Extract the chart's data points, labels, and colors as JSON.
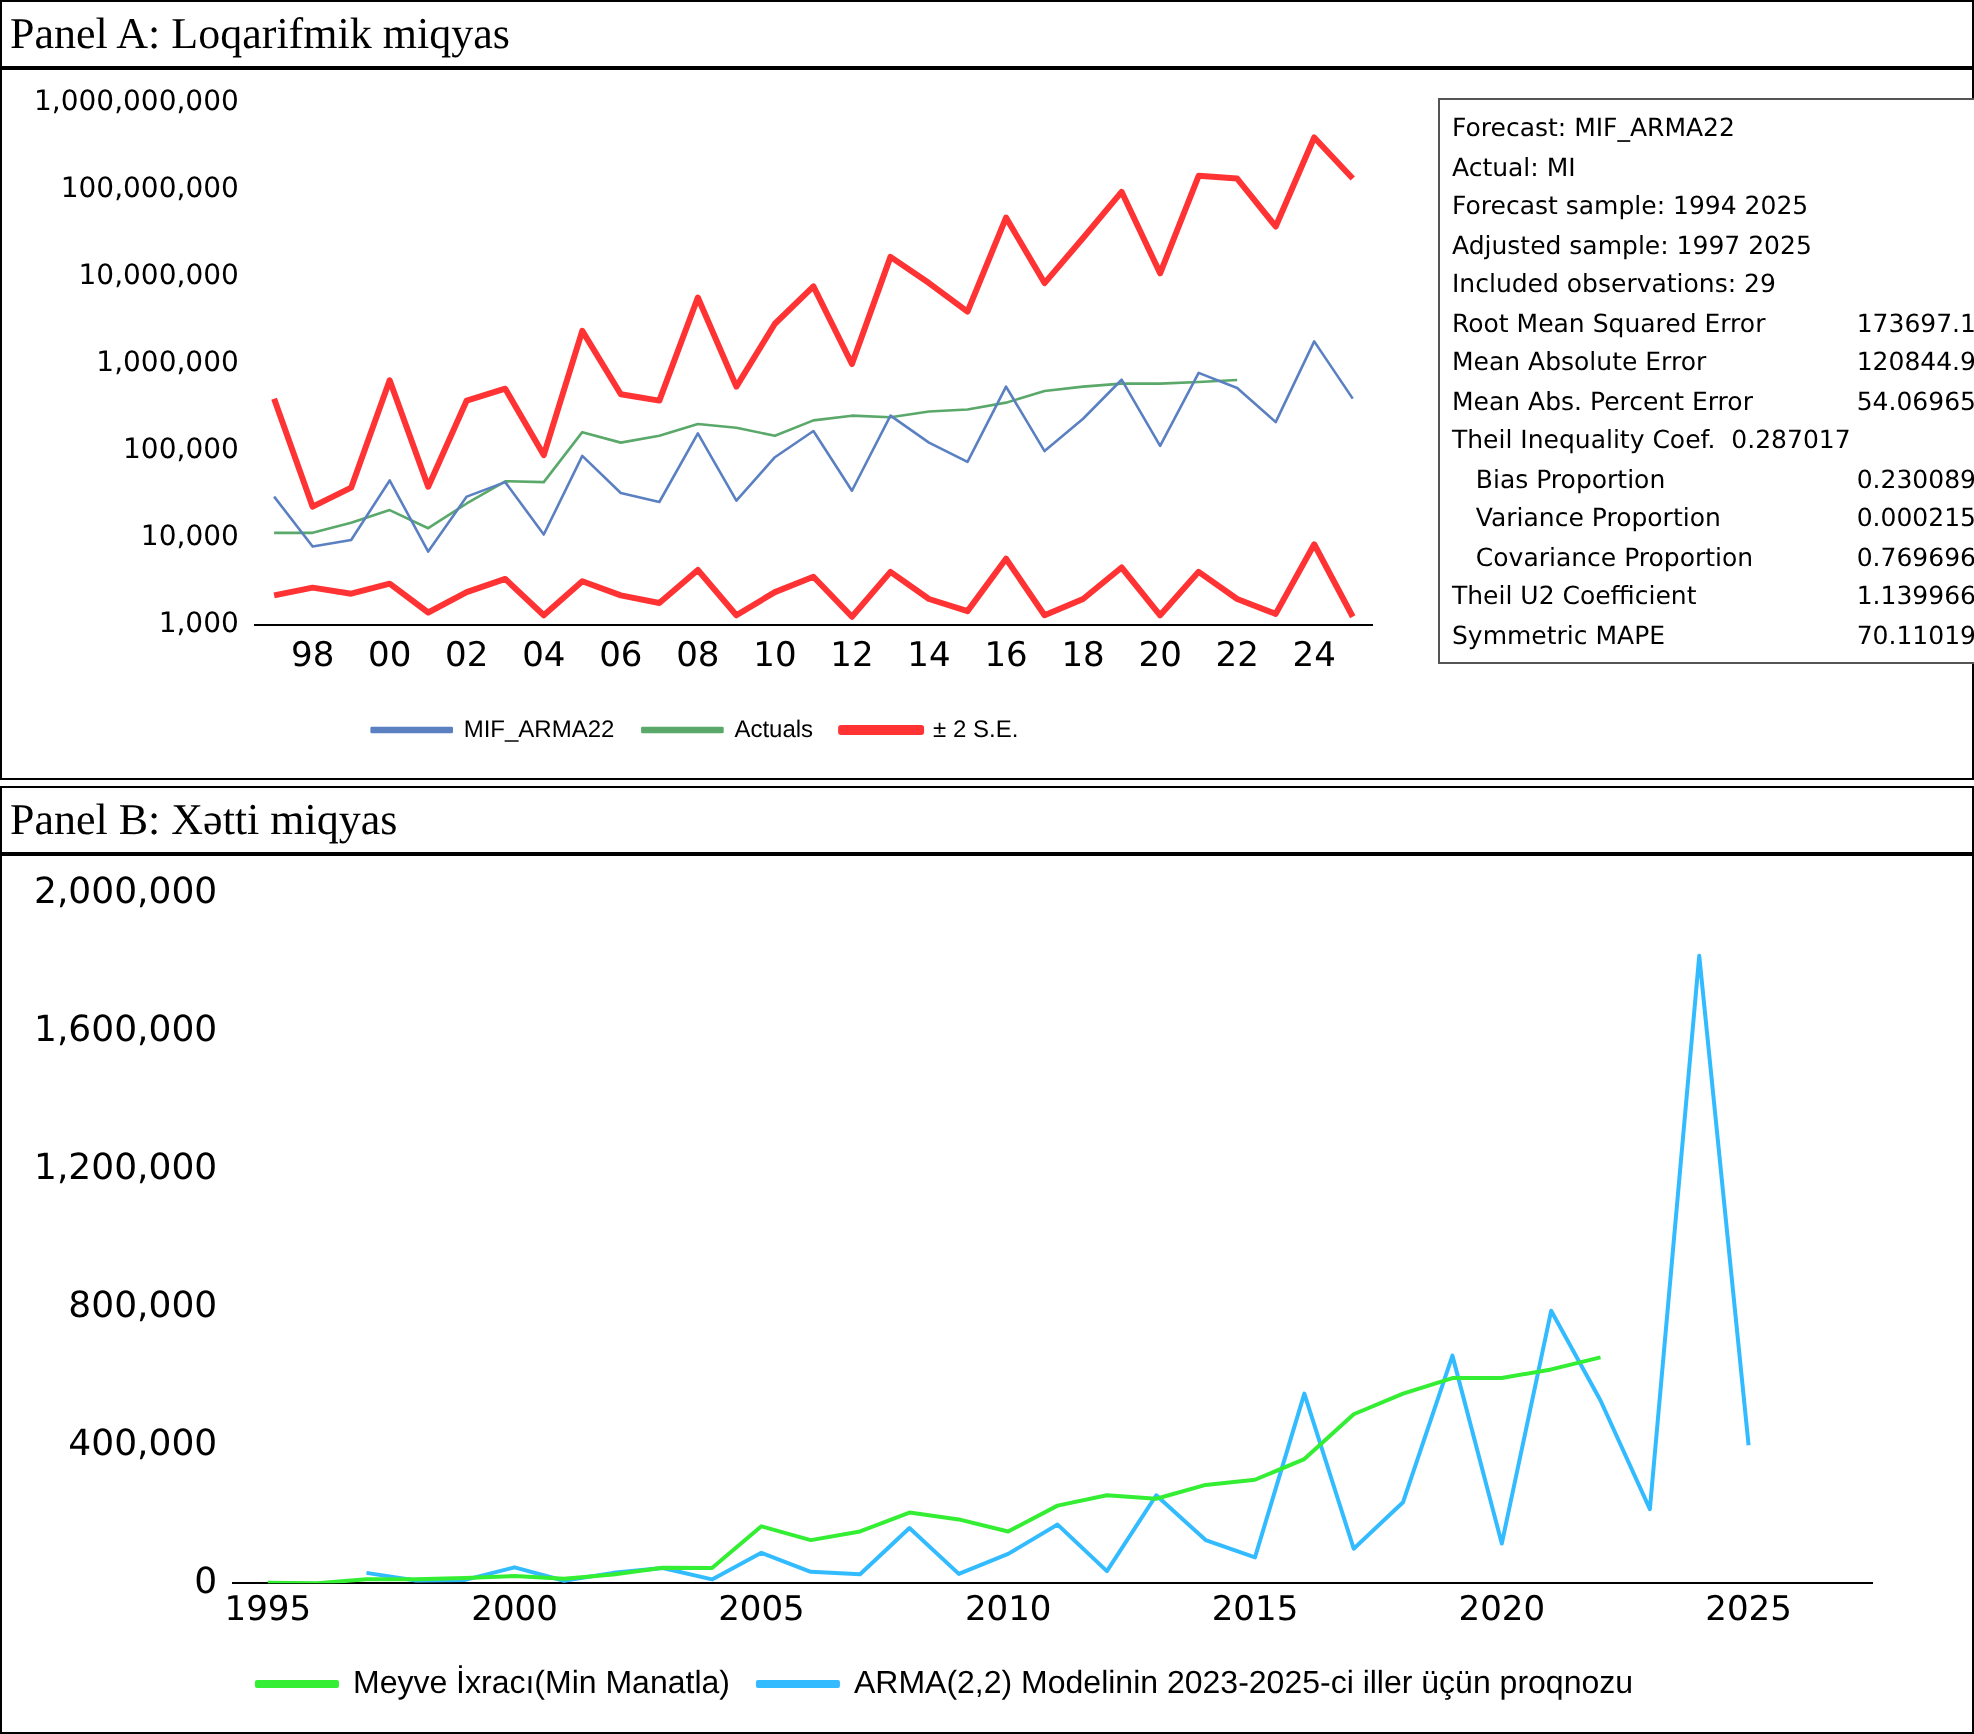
{
  "chart_data": [
    {
      "type": "line",
      "title": "Panel A: Loqarifmik miqyas",
      "log": "y",
      "legend": "bottom",
      "categories": [
        null,
        "98",
        null,
        "00",
        null,
        "02",
        null,
        "04",
        null,
        "06",
        null,
        "08",
        null,
        "10",
        null,
        "12",
        null,
        "14",
        null,
        "16",
        null,
        "18",
        null,
        "20",
        null,
        "22",
        null,
        "24",
        null
      ],
      "ylim": [
        1000,
        1000000000
      ],
      "yticks": [
        {
          "value": 1000,
          "label": "1,000"
        },
        {
          "value": 10000,
          "label": "10,000"
        },
        {
          "value": 100000,
          "label": "100,000"
        },
        {
          "value": 1000000,
          "label": "1,000,000"
        },
        {
          "value": 10000000,
          "label": "10,000,000"
        },
        {
          "value": 100000000,
          "label": "100,000,000"
        },
        {
          "value": 1000000000,
          "label": "1,000,000,000"
        }
      ],
      "series": [
        {
          "name": "MIF_ARMA22",
          "color": "#5b80c2",
          "values": [
            30000,
            8000,
            9500,
            46000,
            7000,
            30000,
            44000,
            11000,
            88000,
            33000,
            26000,
            160000,
            27000,
            85000,
            170000,
            35000,
            255000,
            125000,
            75000,
            550000,
            100000,
            235000,
            660000,
            115000,
            790000,
            530000,
            215000,
            1820000,
            400000
          ]
        },
        {
          "name": "Actuals",
          "color": "#5aa86a",
          "values": [
            11500,
            11500,
            15000,
            21000,
            13000,
            25000,
            45000,
            44000,
            165000,
            125000,
            150000,
            205000,
            185000,
            150000,
            225000,
            255000,
            245000,
            285000,
            300000,
            360000,
            490000,
            550000,
            595000,
            595000,
            620000,
            655000,
            null,
            null,
            null
          ]
        },
        {
          "name": "± 2 S.E.",
          "color": "#ff3333",
          "values": [
            400000,
            23000,
            38000,
            650000,
            39000,
            380000,
            520000,
            90000,
            2400000,
            450000,
            380000,
            5800000,
            550000,
            2900000,
            7800000,
            1000000,
            17000000,
            8500000,
            4000000,
            48000000,
            8500000,
            28000000,
            95000000,
            11000000,
            145000000,
            135000000,
            38000000,
            400000000,
            135000000
          ]
        },
        {
          "color": "#ff3333",
          "values": [
            2200,
            2700,
            2300,
            3000,
            1400,
            2400,
            3400,
            1300,
            3200,
            2200,
            1800,
            4300,
            1300,
            2400,
            3600,
            1250,
            4100,
            2000,
            1450,
            5800,
            1300,
            2000,
            4600,
            1300,
            4100,
            2000,
            1350,
            8500,
            1250
          ]
        }
      ],
      "annotations": [
        "Forecast: MIF_ARMA22",
        "Actual: MI",
        "Forecast sample: 1994 2025",
        "Adjusted sample: 1997 2025",
        "Included observations: 29",
        "Root Mean Squared Error\t173697.1",
        "Mean Absolute Error\t120844.9",
        "Mean Abs. Percent Error\t54.06965",
        "Theil Inequality Coef.  0.287017",
        "   Bias Proportion\t0.230089",
        "   Variance Proportion\t0.000215",
        "   Covariance Proportion\t0.769696",
        "Theil U2 Coefficient\t1.139966",
        "Symmetric MAPE\t70.11019"
      ]
    },
    {
      "type": "line",
      "title": "Panel B: Xətti miqyas",
      "legend": "bottom",
      "xlim": [
        1994.3,
        2027.5
      ],
      "xticks": [
        1995,
        2000,
        2005,
        2010,
        2015,
        2020,
        2025
      ],
      "ylim": [
        0,
        2000000
      ],
      "yticks": [
        {
          "value": 0,
          "label": "0"
        },
        {
          "value": 400000,
          "label": "400,000"
        },
        {
          "value": 800000,
          "label": "800,000"
        },
        {
          "value": 1200000,
          "label": "1,200,000"
        },
        {
          "value": 1600000,
          "label": "1,600,000"
        },
        {
          "value": 2000000,
          "label": "2,000,000"
        }
      ],
      "series": [
        {
          "name": "Meyve İxracı(Min Manatla)",
          "color": "#33ee33",
          "x": [
            1995,
            1996,
            1997,
            1998,
            1999,
            2000,
            2001,
            2002,
            2003,
            2004,
            2005,
            2006,
            2007,
            2008,
            2009,
            2010,
            2011,
            2012,
            2013,
            2014,
            2015,
            2016,
            2017,
            2018,
            2019,
            2020,
            2021,
            2022
          ],
          "values": [
            1000,
            0,
            11500,
            11500,
            15000,
            21000,
            13000,
            25000,
            45000,
            44000,
            165000,
            125000,
            150000,
            205000,
            185000,
            150000,
            225000,
            255000,
            245000,
            285000,
            300000,
            360000,
            490000,
            550000,
            595000,
            595000,
            620000,
            655000
          ]
        },
        {
          "name": "ARMA(2,2) Modelinin 2023-2025-ci iller üçün proqnozu",
          "color": "#33bbff",
          "x": [
            1997,
            1998,
            1999,
            2000,
            2001,
            2002,
            2003,
            2004,
            2005,
            2006,
            2007,
            2008,
            2009,
            2010,
            2011,
            2012,
            2013,
            2014,
            2015,
            2016,
            2017,
            2018,
            2019,
            2020,
            2021,
            2022,
            2023,
            2024,
            2025
          ],
          "values": [
            30000,
            8000,
            9500,
            46000,
            7000,
            30000,
            44000,
            11000,
            88000,
            33000,
            26000,
            160000,
            27000,
            85000,
            170000,
            35000,
            255000,
            125000,
            75000,
            550000,
            100000,
            235000,
            660000,
            115000,
            790000,
            530000,
            215000,
            1820000,
            400000
          ]
        }
      ]
    }
  ]
}
